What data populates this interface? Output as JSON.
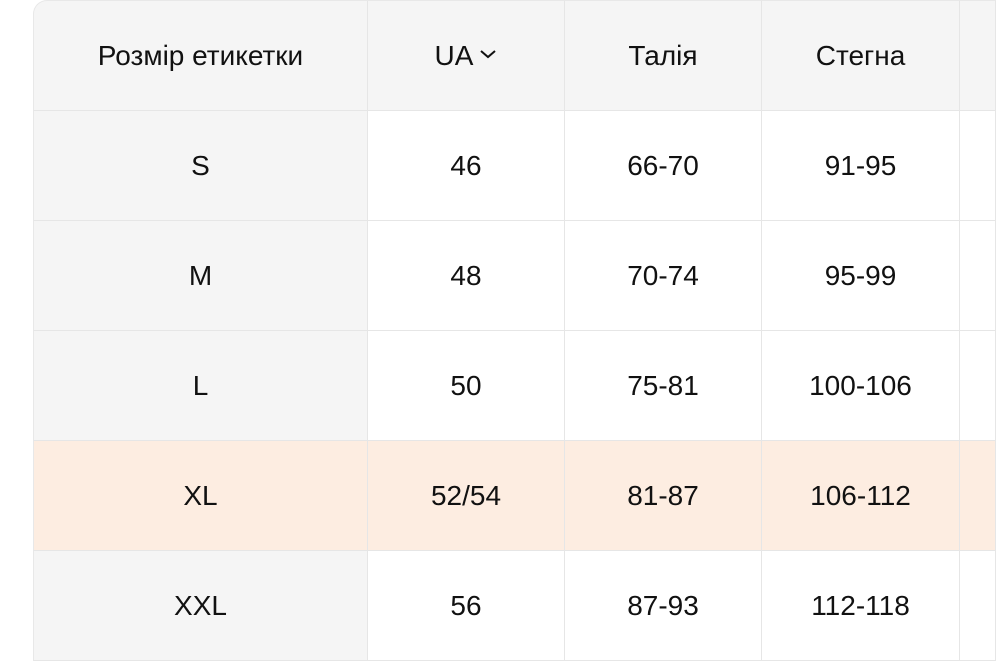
{
  "colors": {
    "header_bg": "#f5f5f5",
    "highlight_row": "#fdede1",
    "border": "#e6e6e6"
  },
  "headers": [
    "Розмір етикетки",
    "UA",
    "Талія",
    "Стегна",
    ""
  ],
  "ua_icon": "chevron-down-icon",
  "rows": [
    {
      "label": "S",
      "ua": "46",
      "waist": "66-70",
      "hips": "91-95"
    },
    {
      "label": "M",
      "ua": "48",
      "waist": "70-74",
      "hips": "95-99"
    },
    {
      "label": "L",
      "ua": "50",
      "waist": "75-81",
      "hips": "100-106"
    },
    {
      "label": "XL",
      "ua": "52/54",
      "waist": "81-87",
      "hips": "106-112",
      "highlighted": true
    },
    {
      "label": "XXL",
      "ua": "56",
      "waist": "87-93",
      "hips": "112-118"
    }
  ]
}
